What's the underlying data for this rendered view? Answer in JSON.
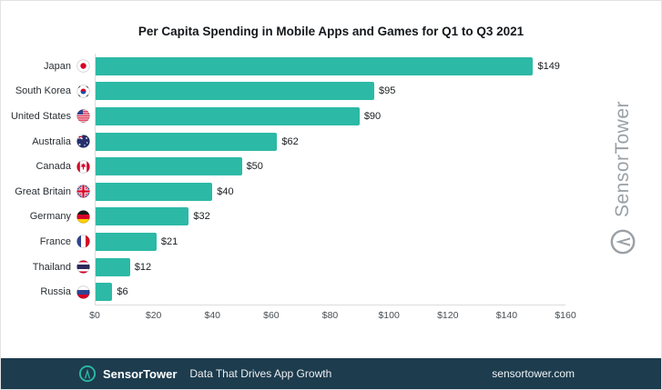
{
  "title": "Per Capita Spending in Mobile Apps and Games for Q1 to Q3 2021",
  "colors": {
    "accent": "#2cb9a6",
    "footer_bg": "#1d3c4e",
    "watermark": "#9aa0a5"
  },
  "chart_data": {
    "type": "bar",
    "orientation": "horizontal",
    "title": "Per Capita Spending in Mobile Apps and Games for Q1 to Q3 2021",
    "categories": [
      "Japan",
      "South Korea",
      "United States",
      "Australia",
      "Canada",
      "Great Britain",
      "Germany",
      "France",
      "Thailand",
      "Russia"
    ],
    "values": [
      149,
      95,
      90,
      62,
      50,
      40,
      32,
      21,
      12,
      6
    ],
    "value_labels": [
      "$149",
      "$95",
      "$90",
      "$62",
      "$50",
      "$40",
      "$32",
      "$21",
      "$12",
      "$6"
    ],
    "flags": [
      "japan-flag-icon",
      "south-korea-flag-icon",
      "united-states-flag-icon",
      "australia-flag-icon",
      "canada-flag-icon",
      "great-britain-flag-icon",
      "germany-flag-icon",
      "france-flag-icon",
      "thailand-flag-icon",
      "russia-flag-icon"
    ],
    "xlabel": "",
    "ylabel": "",
    "xlim": [
      0,
      160
    ],
    "x_ticks": [
      "$0",
      "$20",
      "$40",
      "$60",
      "$80",
      "$100",
      "$120",
      "$140",
      "$160"
    ],
    "bar_color": "#2cb9a6",
    "grid": false,
    "legend": "none"
  },
  "watermark": {
    "text": "SensorTower"
  },
  "footer": {
    "brand": "SensorTower",
    "tagline": "Data That Drives App Growth",
    "website": "sensortower.com"
  }
}
